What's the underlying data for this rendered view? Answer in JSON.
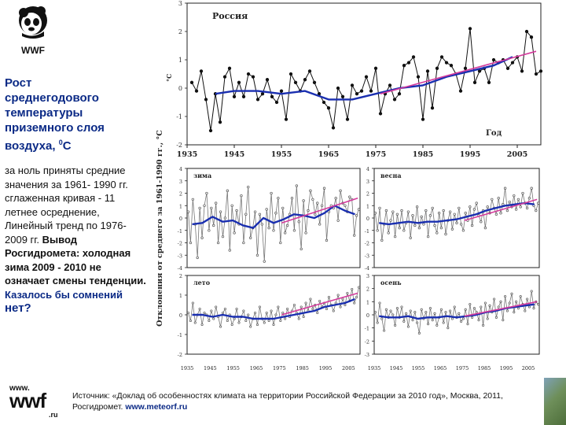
{
  "title": {
    "line1": "Рост",
    "line2": "среднегодового",
    "line3": "температуры",
    "line4": "приземного слоя",
    "line5_pre": "воздуха, ",
    "line5_sup": "0",
    "line5_post": "С"
  },
  "body": {
    "normal": "за ноль приняты средние значения за 1961- 1990 гг. сглаженная кривая - 11 летнее осреднение, Линейный тренд по 1976- 2009 гг.",
    "bold": "Вывод Росгидромета: холодная зима 2009 - 2010 не означает смены тенденции.",
    "question": "Казалось бы сомнений",
    "answer": "нет?"
  },
  "logo": {
    "text": "WWF"
  },
  "wwfru": {
    "www": "www.",
    "big": "wwf",
    "ru": ".ru"
  },
  "source": {
    "text": "Источник: «Доклад об особенностях климата на территории Российской Федерации за 2010 год», Москва, 2011, Росгидромет.",
    "url": "www.meteorf.ru"
  },
  "colors": {
    "title": "#0b2a86",
    "smooth": "#1a2fb0",
    "trend": "#d43b9c",
    "raw": "#777777",
    "axis": "#222222"
  },
  "y_axis_label": "Отклонения от среднего за 1961-1990 гг., °С",
  "chart_data": [
    {
      "type": "line",
      "title": "Россия",
      "xlabel": "Год",
      "ylabel": "°С",
      "xlim": [
        1935,
        2010
      ],
      "ylim": [
        -2,
        3
      ],
      "x_ticks": [
        1935,
        1945,
        1955,
        1965,
        1975,
        1985,
        1995,
        2005
      ],
      "y_ticks": [
        -2,
        -1,
        0,
        1,
        2,
        3
      ],
      "series": [
        {
          "kind": "annual",
          "x": [
            1936,
            1937,
            1938,
            1939,
            1940,
            1941,
            1942,
            1943,
            1944,
            1945,
            1946,
            1947,
            1948,
            1949,
            1950,
            1951,
            1952,
            1953,
            1954,
            1955,
            1956,
            1957,
            1958,
            1959,
            1960,
            1961,
            1962,
            1963,
            1964,
            1965,
            1966,
            1967,
            1968,
            1969,
            1970,
            1971,
            1972,
            1973,
            1974,
            1975,
            1976,
            1977,
            1978,
            1979,
            1980,
            1981,
            1982,
            1983,
            1984,
            1985,
            1986,
            1987,
            1988,
            1989,
            1990,
            1991,
            1992,
            1993,
            1994,
            1995,
            1996,
            1997,
            1998,
            1999,
            2000,
            2001,
            2002,
            2003,
            2004,
            2005,
            2006,
            2007,
            2008,
            2009,
            2010
          ],
          "y": [
            0.2,
            -0.1,
            0.6,
            -0.4,
            -1.5,
            -0.2,
            -1.2,
            0.4,
            0.7,
            -0.3,
            0.2,
            -0.3,
            0.5,
            0.4,
            -0.4,
            -0.2,
            0.3,
            -0.3,
            -0.5,
            -0.1,
            -1.1,
            0.5,
            0.2,
            -0.1,
            0.3,
            0.6,
            0.2,
            -0.2,
            -0.5,
            -0.7,
            -1.4,
            0.0,
            -0.3,
            -1.1,
            0.1,
            -0.2,
            -0.1,
            0.4,
            -0.1,
            0.7,
            -0.9,
            -0.2,
            0.1,
            -0.4,
            -0.2,
            0.8,
            0.9,
            1.1,
            0.4,
            -1.1,
            0.6,
            -0.7,
            0.7,
            1.1,
            0.9,
            0.8,
            0.5,
            -0.1,
            0.7,
            2.1,
            0.2,
            0.6,
            0.7,
            0.2,
            1.0,
            0.9,
            1.0,
            0.7,
            0.9,
            1.1,
            0.6,
            2.0,
            1.8,
            0.5,
            0.6
          ]
        },
        {
          "kind": "smoothed",
          "x": [
            1941,
            1945,
            1950,
            1955,
            1960,
            1965,
            1970,
            1975,
            1980,
            1985,
            1990,
            1995,
            2000,
            2004
          ],
          "y": [
            -0.2,
            -0.1,
            -0.1,
            -0.2,
            -0.1,
            -0.4,
            -0.4,
            -0.2,
            0.0,
            0.1,
            0.4,
            0.6,
            0.8,
            1.1
          ]
        },
        {
          "kind": "trend",
          "x": [
            1976,
            2009
          ],
          "y": [
            -0.2,
            1.3
          ]
        }
      ]
    },
    {
      "type": "line",
      "title": "зима",
      "xlim": [
        1935,
        2010
      ],
      "ylim": [
        -4,
        4
      ],
      "y_ticks": [
        -4,
        -3,
        -2,
        -1,
        0,
        1,
        2,
        3,
        4
      ],
      "series": [
        {
          "kind": "seasonal",
          "y": [
            0.5,
            -2.0,
            1.5,
            -0.5,
            -3.2,
            0.8,
            -1.6,
            1.0,
            2.0,
            -1.0,
            0.8,
            -0.6,
            1.2,
            -2.0,
            0.5,
            -1.5,
            0.0,
            2.2,
            -2.6,
            1.0,
            -1.2,
            0.6,
            -0.5,
            1.8,
            -2.0,
            0.3,
            2.5,
            -1.6,
            -0.8,
            0.5,
            -3.0,
            0.3,
            -0.5,
            -3.5,
            0.7,
            -0.8,
            2.0,
            -1.0,
            0.4,
            1.6,
            -2.0,
            0.8,
            -1.2,
            -0.6,
            0.3,
            1.6,
            -1.0,
            2.6,
            -0.3,
            -2.5,
            1.4,
            -1.2,
            0.6,
            2.2,
            1.5,
            0.3,
            1.2,
            -0.5,
            1.0,
            2.4,
            -1.8,
            0.5,
            1.0,
            0.8,
            1.6,
            -0.2,
            2.2,
            1.2,
            1.0,
            0.5,
            1.7,
            1.5,
            -1.4,
            0.2,
            0.7
          ]
        },
        {
          "kind": "smoothed",
          "y": [
            -0.5,
            -0.4,
            0.1,
            -0.3,
            -0.2,
            -0.6,
            -0.8,
            0.0,
            -0.4,
            -0.1,
            0.3,
            0.2,
            0.0,
            0.4,
            1.0,
            0.6,
            0.3
          ]
        },
        {
          "kind": "trend",
          "x": [
            1976,
            2009
          ],
          "y": [
            -0.4,
            1.6
          ]
        }
      ]
    },
    {
      "type": "line",
      "title": "весна",
      "xlim": [
        1935,
        2010
      ],
      "ylim": [
        -4,
        4
      ],
      "y_ticks": [
        -4,
        -3,
        -2,
        -1,
        0,
        1,
        2,
        3,
        4
      ],
      "series": [
        {
          "kind": "seasonal",
          "y": [
            0.4,
            -1.0,
            0.8,
            -1.8,
            -0.5,
            0.6,
            -1.2,
            -0.2,
            0.5,
            -1.5,
            0.3,
            -0.8,
            0.6,
            -1.0,
            -0.4,
            0.5,
            -1.6,
            0.2,
            -0.6,
            0.9,
            -0.8,
            0.1,
            -0.5,
            0.6,
            -1.5,
            0.2,
            0.8,
            -0.6,
            -1.2,
            0.4,
            -0.8,
            0.6,
            -1.3,
            -0.2,
            0.5,
            -0.9,
            0.3,
            -0.4,
            0.8,
            -0.5,
            -1.0,
            0.4,
            -0.2,
            0.9,
            -0.6,
            0.7,
            1.2,
            0.2,
            -0.3,
            0.6,
            -0.8,
            0.9,
            0.4,
            1.5,
            0.8,
            0.3,
            1.6,
            0.4,
            1.1,
            2.4,
            0.6,
            1.3,
            0.9,
            1.8,
            0.7,
            1.5,
            0.9,
            2.0,
            1.2,
            0.8,
            1.6,
            2.4,
            1.0,
            0.6,
            1.2
          ]
        },
        {
          "kind": "smoothed",
          "y": [
            -0.4,
            -0.5,
            -0.4,
            -0.3,
            -0.4,
            -0.3,
            -0.3,
            -0.2,
            -0.1,
            0.1,
            0.3,
            0.6,
            0.8,
            1.0,
            1.1,
            1.2,
            1.1
          ]
        },
        {
          "kind": "trend",
          "x": [
            1976,
            2009
          ],
          "y": [
            -0.2,
            1.5
          ]
        }
      ]
    },
    {
      "type": "line",
      "title": "лето",
      "xlim": [
        1935,
        2010
      ],
      "ylim": [
        -2,
        2
      ],
      "y_ticks": [
        -2,
        -1,
        0,
        1,
        2
      ],
      "series": [
        {
          "kind": "seasonal",
          "y": [
            0.1,
            -0.3,
            0.6,
            -0.4,
            0.0,
            0.3,
            -0.5,
            0.1,
            0.0,
            -0.3,
            0.2,
            -0.2,
            0.4,
            -0.1,
            -0.6,
            0.1,
            0.3,
            -0.3,
            0.0,
            -0.5,
            -0.2,
            0.3,
            -0.4,
            -0.1,
            0.2,
            -0.3,
            0.0,
            -0.6,
            -0.2,
            0.1,
            -0.5,
            0.4,
            -0.2,
            -0.4,
            0.1,
            -0.3,
            0.2,
            -0.5,
            0.0,
            0.4,
            -0.3,
            0.1,
            -0.2,
            0.3,
            -0.1,
            0.2,
            0.5,
            0.1,
            -0.2,
            0.4,
            -0.1,
            0.6,
            0.2,
            0.8,
            0.3,
            0.5,
            0.1,
            0.7,
            0.4,
            0.6,
            0.3,
            0.9,
            0.5,
            0.2,
            0.6,
            1.0,
            0.4,
            0.8,
            0.5,
            1.1,
            0.7,
            1.3,
            0.6,
            0.9,
            1.4
          ]
        },
        {
          "kind": "smoothed",
          "y": [
            0.0,
            0.0,
            -0.1,
            0.0,
            -0.1,
            -0.1,
            -0.2,
            -0.2,
            -0.2,
            -0.1,
            0.0,
            0.1,
            0.2,
            0.4,
            0.5,
            0.6,
            0.8
          ]
        },
        {
          "kind": "trend",
          "x": [
            1976,
            2009
          ],
          "y": [
            0.0,
            1.1
          ]
        }
      ]
    },
    {
      "type": "line",
      "title": "осень",
      "xlim": [
        1935,
        2010
      ],
      "ylim": [
        -3,
        3
      ],
      "y_ticks": [
        -3,
        -2,
        -1,
        0,
        1,
        2,
        3
      ],
      "series": [
        {
          "kind": "seasonal",
          "y": [
            0.2,
            -0.6,
            0.9,
            -0.3,
            -1.2,
            0.4,
            -0.2,
            0.3,
            0.0,
            -0.8,
            0.5,
            -0.2,
            0.6,
            -0.5,
            0.1,
            -0.9,
            0.3,
            -0.4,
            0.2,
            -0.6,
            -1.4,
            0.4,
            -0.3,
            0.2,
            -0.7,
            0.5,
            -0.4,
            0.1,
            -0.8,
            -0.2,
            0.4,
            -0.6,
            0.2,
            -1.0,
            0.3,
            -0.3,
            0.6,
            -0.2,
            0.1,
            -0.5,
            -0.3,
            0.4,
            -0.7,
            0.8,
            -0.2,
            0.5,
            0.2,
            -0.4,
            0.6,
            -0.8,
            0.9,
            -0.3,
            0.7,
            0.2,
            1.2,
            -0.2,
            0.6,
            1.0,
            -0.4,
            1.4,
            0.3,
            0.9,
            1.6,
            0.2,
            1.0,
            0.5,
            1.4,
            0.8,
            0.3,
            1.2,
            0.6,
            1.8,
            0.5,
            1.0,
            0.8
          ]
        },
        {
          "kind": "smoothed",
          "y": [
            -0.1,
            -0.2,
            -0.2,
            -0.1,
            -0.3,
            -0.2,
            -0.2,
            -0.1,
            -0.2,
            -0.1,
            0.0,
            0.2,
            0.3,
            0.5,
            0.6,
            0.7,
            0.8
          ]
        },
        {
          "kind": "trend",
          "x": [
            1976,
            2009
          ],
          "y": [
            -0.1,
            1.0
          ]
        }
      ]
    }
  ],
  "annotation": "Год",
  "x_ticks_small": [
    1935,
    1945,
    1955,
    1965,
    1975,
    1985,
    1995,
    2005
  ]
}
